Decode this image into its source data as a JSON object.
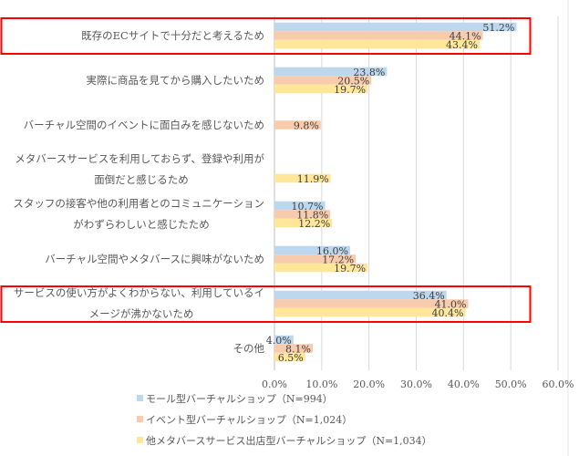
{
  "chart_data": {
    "type": "bar",
    "orientation": "horizontal",
    "categories": [
      [
        "既存のECサイトで十分だと考えるため"
      ],
      [
        "実際に商品を見てから購入したいため"
      ],
      [
        "バーチャル空間のイベントに面白みを感じないため"
      ],
      [
        "メタバースサービスを利用しておらず、登録や利用が",
        "面倒だと感じるため"
      ],
      [
        "スタッフの接客や他の利用者とのコミュニケーション",
        "がわずらわしいと感じたため"
      ],
      [
        "バーチャル空間やメタバースに興味がないため"
      ],
      [
        "サービスの使い方がよくわからない、利用しているイ",
        "メージが沸かないため"
      ],
      [
        "その他"
      ]
    ],
    "series": [
      {
        "name": "モール型バーチャルショップ（N=994）",
        "color": "#bdd7ee",
        "values": [
          51.2,
          23.8,
          null,
          null,
          10.7,
          16.0,
          36.4,
          4.0
        ]
      },
      {
        "name": "イベント型バーチャルショップ（N=1,024）",
        "color": "#f8cbad",
        "values": [
          44.1,
          20.5,
          9.8,
          null,
          11.8,
          17.2,
          41.0,
          8.1
        ]
      },
      {
        "name": "他メタバースサービス出店型バーチャルショップ（N=1,034）",
        "color": "#ffe699",
        "values": [
          43.4,
          19.7,
          null,
          11.9,
          12.2,
          19.7,
          40.4,
          6.5
        ]
      }
    ],
    "xlim": [
      0,
      60
    ],
    "xticks": [
      "0.0%",
      "10.0%",
      "20.0%",
      "30.0%",
      "40.0%",
      "50.0%",
      "60.0%"
    ],
    "value_suffix": "%",
    "grid": true,
    "legend_position": "bottom",
    "highlighted_categories": [
      0,
      6
    ],
    "highlight_color": "#ff0000"
  }
}
